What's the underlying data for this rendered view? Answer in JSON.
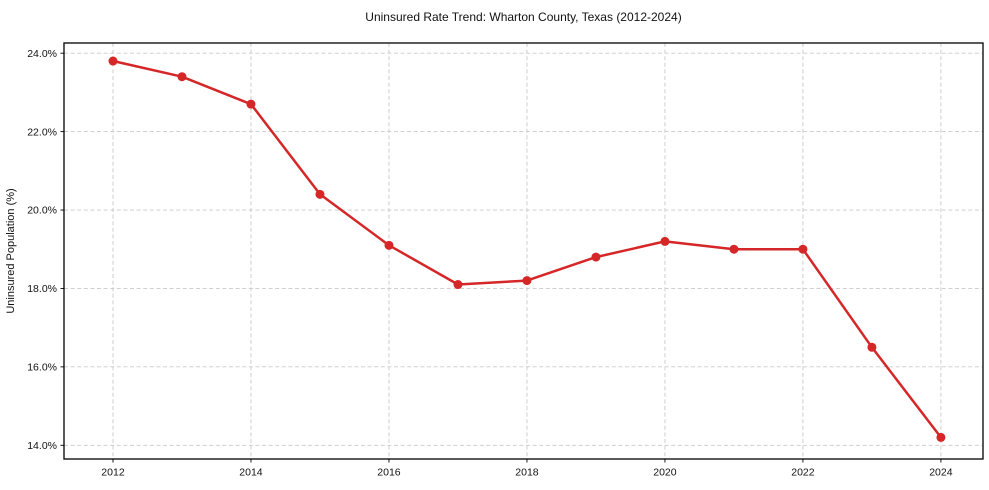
{
  "chart_data": {
    "type": "line",
    "title": "Uninsured Rate Trend: Wharton County, Texas (2012-2024)",
    "xlabel": "",
    "ylabel": "Uninsured Population (%)",
    "x": [
      2012,
      2013,
      2014,
      2015,
      2016,
      2017,
      2018,
      2019,
      2020,
      2021,
      2022,
      2023,
      2024
    ],
    "values": [
      23.8,
      23.4,
      22.7,
      20.4,
      19.1,
      18.1,
      18.2,
      18.8,
      19.2,
      19.0,
      19.0,
      16.5,
      14.2
    ],
    "line_color": "#d62728",
    "marker": "circle",
    "grid": true,
    "legend": "none",
    "x_ticks": [
      {
        "v": 2012,
        "label": "2012"
      },
      {
        "v": 2014,
        "label": "2014"
      },
      {
        "v": 2016,
        "label": "2016"
      },
      {
        "v": 2018,
        "label": "2018"
      },
      {
        "v": 2020,
        "label": "2020"
      },
      {
        "v": 2022,
        "label": "2022"
      },
      {
        "v": 2024,
        "label": "2024"
      }
    ],
    "y_ticks": [
      {
        "v": 14.0,
        "label": "14.0%"
      },
      {
        "v": 16.0,
        "label": "16.0%"
      },
      {
        "v": 18.0,
        "label": "18.0%"
      },
      {
        "v": 20.0,
        "label": "20.0%"
      },
      {
        "v": 22.0,
        "label": "22.0%"
      },
      {
        "v": 24.0,
        "label": "24.0%"
      }
    ],
    "xlim": [
      2011.29,
      2024.61
    ],
    "ylim": [
      13.65,
      24.26
    ]
  }
}
